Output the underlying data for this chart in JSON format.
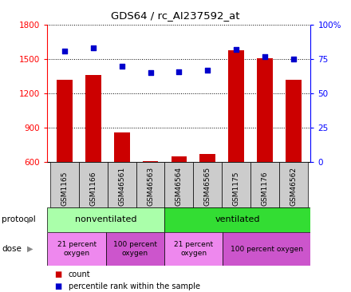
{
  "title": "GDS64 / rc_AI237592_at",
  "samples": [
    "GSM1165",
    "GSM1166",
    "GSM46561",
    "GSM46563",
    "GSM46564",
    "GSM46565",
    "GSM1175",
    "GSM1176",
    "GSM46562"
  ],
  "counts": [
    1320,
    1360,
    860,
    610,
    650,
    670,
    1580,
    1510,
    1320
  ],
  "percentile_ranks": [
    81,
    83,
    70,
    65,
    66,
    67,
    82,
    77,
    75
  ],
  "ylim_left": [
    600,
    1800
  ],
  "ylim_right": [
    0,
    100
  ],
  "yticks_left": [
    600,
    900,
    1200,
    1500,
    1800
  ],
  "yticks_right": [
    0,
    25,
    50,
    75,
    100
  ],
  "bar_color": "#cc0000",
  "dot_color": "#0000cc",
  "protocol_groups": [
    {
      "label": "nonventilated",
      "start": 0,
      "end": 4,
      "color": "#aaffaa"
    },
    {
      "label": "ventilated",
      "start": 4,
      "end": 9,
      "color": "#33dd33"
    }
  ],
  "dose_groups": [
    {
      "label": "21 percent\noxygen",
      "start": 0,
      "end": 2,
      "color": "#ee88ee"
    },
    {
      "label": "100 percent\noxygen",
      "start": 2,
      "end": 4,
      "color": "#cc55cc"
    },
    {
      "label": "21 percent\noxygen",
      "start": 4,
      "end": 6,
      "color": "#ee88ee"
    },
    {
      "label": "100 percent oxygen",
      "start": 6,
      "end": 9,
      "color": "#cc55cc"
    }
  ],
  "legend_count_color": "#cc0000",
  "legend_pct_color": "#0000cc",
  "sample_label_bg": "#cccccc"
}
